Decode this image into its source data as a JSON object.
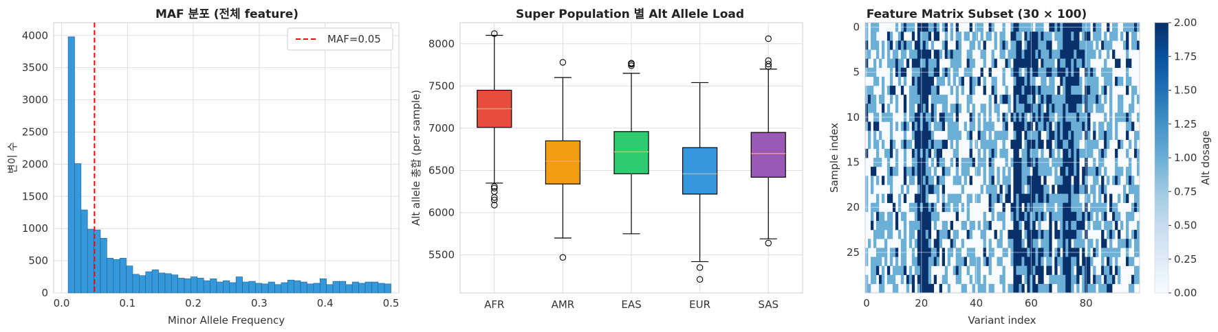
{
  "chart_data": [
    {
      "type": "bar",
      "title": "MAF 분포 (전체 feature)",
      "xlabel": "Minor Allele Frequency",
      "ylabel": "변이 수",
      "xlim": [
        0.0,
        0.5
      ],
      "ylim": [
        0,
        4200
      ],
      "xticks": [
        "0.0",
        "0.1",
        "0.2",
        "0.3",
        "0.4",
        "0.5"
      ],
      "yticks": [
        "0",
        "500",
        "1000",
        "1500",
        "2000",
        "2500",
        "3000",
        "3500",
        "4000"
      ],
      "bin_start": 0.01,
      "bin_width": 0.0098,
      "values": [
        3980,
        2010,
        1290,
        990,
        980,
        850,
        540,
        520,
        540,
        420,
        290,
        270,
        330,
        360,
        310,
        300,
        280,
        230,
        220,
        250,
        230,
        190,
        220,
        170,
        190,
        160,
        250,
        170,
        180,
        150,
        140,
        170,
        130,
        160,
        200,
        190,
        170,
        140,
        150,
        220,
        130,
        180,
        180,
        130,
        170,
        150,
        170,
        170,
        150,
        140
      ],
      "bar_color": "#3498db",
      "grid": true,
      "reference_line": {
        "x": 0.05,
        "label": "MAF=0.05",
        "color": "#ff0000"
      },
      "legend_position": "top-right"
    },
    {
      "type": "box",
      "title": "Super Population 별 Alt Allele Load",
      "xlabel": "",
      "ylabel": "Alt allele 총합 (per sample)",
      "ylim": [
        5050,
        8250
      ],
      "yticks": [
        "5500",
        "6000",
        "6500",
        "7000",
        "7500",
        "8000"
      ],
      "grid": true,
      "categories": [
        "AFR",
        "AMR",
        "EAS",
        "EUR",
        "SAS"
      ],
      "colors": [
        "#e74c3c",
        "#f39c12",
        "#2ecc71",
        "#3498db",
        "#9b59b6"
      ],
      "boxes": [
        {
          "whisker_low": 6350,
          "q1": 7010,
          "median": 7230,
          "q3": 7450,
          "whisker_high": 8100,
          "outliers": [
            6310,
            6290,
            6250,
            6180,
            6150,
            6090,
            8120
          ]
        },
        {
          "whisker_low": 5700,
          "q1": 6340,
          "median": 6610,
          "q3": 6850,
          "whisker_high": 7600,
          "outliers": [
            5470,
            7780
          ]
        },
        {
          "whisker_low": 5750,
          "q1": 6460,
          "median": 6720,
          "q3": 6960,
          "whisker_high": 7650,
          "outliers": [
            7740,
            7760,
            7770
          ]
        },
        {
          "whisker_low": 5420,
          "q1": 6220,
          "median": 6460,
          "q3": 6770,
          "whisker_high": 7540,
          "outliers": [
            5350,
            5210
          ]
        },
        {
          "whisker_low": 5690,
          "q1": 6420,
          "median": 6700,
          "q3": 6950,
          "whisker_high": 7700,
          "outliers": [
            5640,
            7730,
            7760,
            7800,
            8060
          ]
        }
      ]
    },
    {
      "type": "heatmap",
      "title": "Feature Matrix Subset (30 × 100)",
      "xlabel": "Variant index",
      "ylabel": "Sample index",
      "rows": 30,
      "cols": 100,
      "xticks": [
        "0",
        "20",
        "40",
        "60",
        "80"
      ],
      "yticks": [
        "0",
        "5",
        "10",
        "15",
        "20",
        "25"
      ],
      "colormap": "Blues",
      "value_range": [
        0.0,
        2.0
      ],
      "colorbar_label": "Alt dosage",
      "colorbar_ticks": [
        "0.00",
        "0.25",
        "0.50",
        "0.75",
        "1.00",
        "1.25",
        "1.50",
        "1.75",
        "2.00"
      ],
      "colors": {
        "dosage_0": "#f7fbff",
        "dosage_1": "#6baed6",
        "dosage_2": "#08306b"
      },
      "column_allele_frequency": [
        0.45,
        0.25,
        0.2,
        0.35,
        0.3,
        0.2,
        0.4,
        0.15,
        0.3,
        0.45,
        0.25,
        0.35,
        0.2,
        0.3,
        0.5,
        0.3,
        0.45,
        0.55,
        0.45,
        0.9,
        0.85,
        0.95,
        0.85,
        0.7,
        0.5,
        0.55,
        0.45,
        0.3,
        0.35,
        0.4,
        0.25,
        0.35,
        0.2,
        0.45,
        0.2,
        0.25,
        0.3,
        0.2,
        0.5,
        0.25,
        0.2,
        0.3,
        0.25,
        0.35,
        0.2,
        0.45,
        0.3,
        0.25,
        0.15,
        0.2,
        0.35,
        0.3,
        0.25,
        0.3,
        0.9,
        0.85,
        0.8,
        0.55,
        0.65,
        0.85,
        0.75,
        0.8,
        0.6,
        0.7,
        0.55,
        0.5,
        0.55,
        0.6,
        0.5,
        0.45,
        0.55,
        0.5,
        0.75,
        0.9,
        0.95,
        0.75,
        0.7,
        0.8,
        0.45,
        0.5,
        0.55,
        0.5,
        0.35,
        0.45,
        0.4,
        0.3,
        0.45,
        0.45,
        0.4,
        0.5,
        0.25,
        0.35,
        0.3,
        0.2,
        0.25,
        0.35,
        0.3,
        0.25,
        0.35,
        0.3
      ],
      "seed": 7
    }
  ]
}
